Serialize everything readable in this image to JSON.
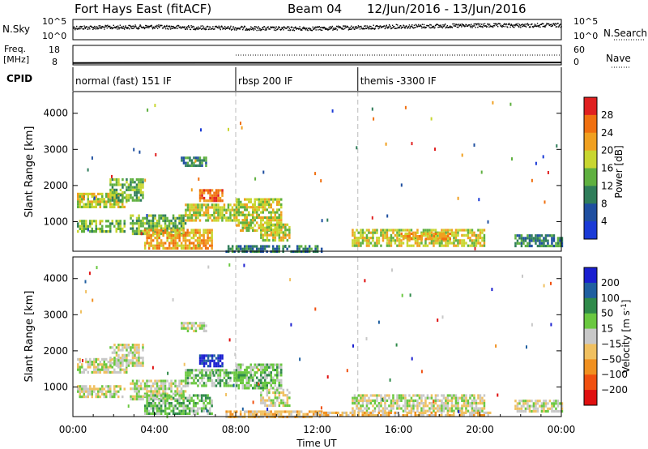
{
  "header": {
    "station": "Fort Hays East (fitACF)",
    "beam": "Beam 04",
    "date_range": "12/Jun/2016 - 13/Jun/2016"
  },
  "chart_data": [
    {
      "type": "scatter",
      "name": "noise-panel",
      "left_label": "N.Sky",
      "right_label": "N.Search",
      "left_ticks": [
        "10^5",
        "10^0"
      ],
      "right_ticks": [
        "10^5",
        "10^0"
      ],
      "x": [
        0,
        2,
        4,
        6,
        8,
        10,
        12,
        14,
        16,
        18,
        20,
        22,
        24
      ],
      "sky_level": [
        0.62,
        0.64,
        0.66,
        0.62,
        0.6,
        0.57,
        0.58,
        0.62,
        0.68,
        0.7,
        0.72,
        0.73,
        0.74
      ]
    },
    {
      "type": "line",
      "name": "freq-panel",
      "left_label_1": "Freq.",
      "left_label_2": "[MHz]",
      "right_label": "Nave",
      "left_ticks": [
        "18",
        "8"
      ],
      "right_ticks": [
        "60",
        "0"
      ],
      "freq_mhz": [
        [
          0,
          8.15
        ],
        [
          24,
          8.4
        ]
      ],
      "nave": [
        [
          8,
          30
        ],
        [
          24,
          30
        ]
      ]
    },
    {
      "type": "table",
      "name": "cpid-bar",
      "label": "CPID",
      "segments": [
        {
          "start": 0,
          "end": 8,
          "text": "normal (fast) 151 IF"
        },
        {
          "start": 8,
          "end": 14,
          "text": "rbsp 200 IF"
        },
        {
          "start": 14,
          "end": 24,
          "text": "themis -3300 IF"
        }
      ]
    },
    {
      "type": "heatmap",
      "name": "power",
      "ylabel": "Slant Range [km]",
      "ylim": [
        180,
        4600
      ],
      "yticks": [
        "1000",
        "2000",
        "3000",
        "4000"
      ],
      "colorbar_label": "Power [dB]",
      "colorbar_ticks": [
        "4",
        "8",
        "12",
        "16",
        "20",
        "24",
        "28"
      ],
      "colors": [
        "#1a3ad6",
        "#1f4fa0",
        "#2f7d5a",
        "#5fb040",
        "#c8d630",
        "#f0a020",
        "#f07010",
        "#e02020"
      ],
      "regions": [
        {
          "x": [
            0.2,
            2.6
          ],
          "y": [
            1400,
            1800
          ],
          "level": 4
        },
        {
          "x": [
            1.8,
            3.4
          ],
          "y": [
            1600,
            2200
          ],
          "level": 3
        },
        {
          "x": [
            0.2,
            2.5
          ],
          "y": [
            700,
            1050
          ],
          "level": 3
        },
        {
          "x": [
            2.8,
            5.5
          ],
          "y": [
            650,
            1200
          ],
          "level": 3
        },
        {
          "x": [
            3.5,
            6.8
          ],
          "y": [
            280,
            800
          ],
          "level": 5
        },
        {
          "x": [
            5.3,
            6.5
          ],
          "y": [
            2550,
            2800
          ],
          "level": 2
        },
        {
          "x": [
            5.5,
            8.0
          ],
          "y": [
            1000,
            1500
          ],
          "level": 4
        },
        {
          "x": [
            6.2,
            7.3
          ],
          "y": [
            1550,
            1900
          ],
          "level": 6
        },
        {
          "x": [
            8.0,
            10.2
          ],
          "y": [
            750,
            1650
          ],
          "level": 4
        },
        {
          "x": [
            9.2,
            10.6
          ],
          "y": [
            450,
            950
          ],
          "level": 4
        },
        {
          "x": [
            7.5,
            12.2
          ],
          "y": [
            200,
            350
          ],
          "level": 2
        },
        {
          "x": [
            13.7,
            20.2
          ],
          "y": [
            300,
            800
          ],
          "level": 4
        },
        {
          "x": [
            16.0,
            18.5
          ],
          "y": [
            550,
            700
          ],
          "level": 5
        },
        {
          "x": [
            21.7,
            24.0
          ],
          "y": [
            300,
            650
          ],
          "level": 2
        }
      ]
    },
    {
      "type": "heatmap",
      "name": "velocity",
      "ylabel": "Slant Range [km]",
      "xlabel": "Time UT",
      "ylim": [
        180,
        4600
      ],
      "yticks": [
        "1000",
        "2000",
        "3000",
        "4000"
      ],
      "xticks": [
        "00:00",
        "04:00",
        "08:00",
        "12:00",
        "16:00",
        "20:00",
        "00:00"
      ],
      "x_range": [
        0,
        24
      ],
      "colorbar_label": "Velocity [m s^-1]",
      "colorbar_ticks": [
        "200",
        "100",
        "50",
        "15",
        "-15",
        "-50",
        "-100",
        "-200"
      ],
      "colors": [
        "#1a1fd0",
        "#1f5fa0",
        "#2f8a4a",
        "#6ac840",
        "#c8c8c8",
        "#f0c060",
        "#f09020",
        "#f05010",
        "#e01010"
      ],
      "regions": [
        {
          "x": [
            0.2,
            2.6
          ],
          "y": [
            1400,
            1800
          ],
          "level": 4
        },
        {
          "x": [
            1.8,
            3.4
          ],
          "y": [
            1600,
            2200
          ],
          "level": 4
        },
        {
          "x": [
            0.2,
            2.5
          ],
          "y": [
            700,
            1050
          ],
          "level": 4
        },
        {
          "x": [
            2.8,
            5.5
          ],
          "y": [
            650,
            1200
          ],
          "level": 4
        },
        {
          "x": [
            3.5,
            6.8
          ],
          "y": [
            280,
            800
          ],
          "level": 3
        },
        {
          "x": [
            5.3,
            6.5
          ],
          "y": [
            2550,
            2800
          ],
          "level": 4
        },
        {
          "x": [
            5.5,
            8.0
          ],
          "y": [
            1050,
            1500
          ],
          "level": 3
        },
        {
          "x": [
            6.2,
            7.3
          ],
          "y": [
            1550,
            1900
          ],
          "level": 0
        },
        {
          "x": [
            8.0,
            10.2
          ],
          "y": [
            1000,
            1650
          ],
          "level": 3
        },
        {
          "x": [
            9.2,
            10.6
          ],
          "y": [
            450,
            950
          ],
          "level": 4
        },
        {
          "x": [
            7.5,
            12.2
          ],
          "y": [
            200,
            350
          ],
          "level": 5
        },
        {
          "x": [
            13.7,
            20.2
          ],
          "y": [
            300,
            800
          ],
          "level": 4
        },
        {
          "x": [
            12.0,
            20.5
          ],
          "y": [
            200,
            320
          ],
          "level": 5
        },
        {
          "x": [
            21.7,
            24.0
          ],
          "y": [
            300,
            650
          ],
          "level": 4
        }
      ]
    }
  ]
}
